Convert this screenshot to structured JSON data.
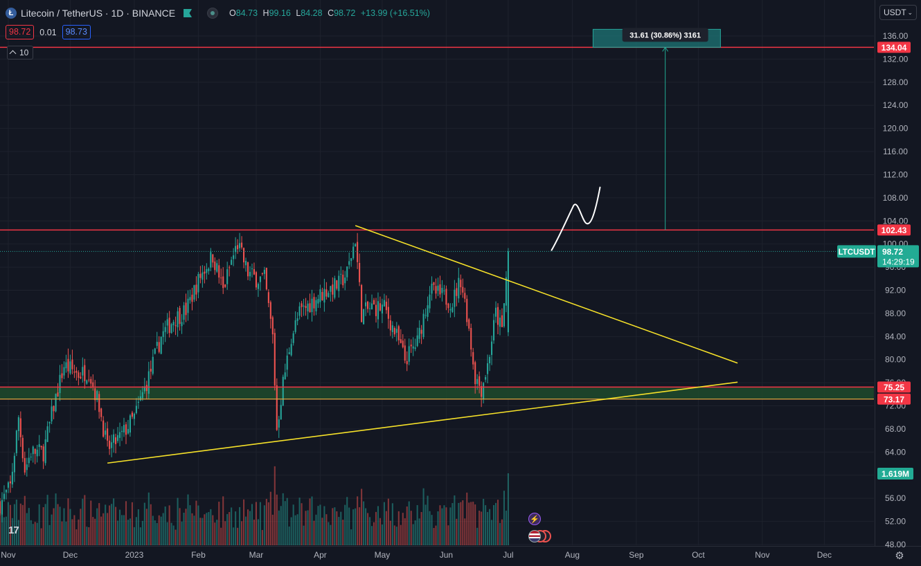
{
  "header": {
    "symbol_title": "Litecoin / TetherUS · 1D · BINANCE",
    "ohlc": {
      "o_label": "O",
      "o": "84.73",
      "h_label": "H",
      "h": "99.16",
      "l_label": "L",
      "l": "84.28",
      "c_label": "C",
      "c": "98.72",
      "change": "+13.99 (+16.51%)"
    },
    "sell_price": "98.72",
    "spread": "0.01",
    "buy_price": "98.73",
    "indicator_value": "10"
  },
  "currency_selector": "USDT",
  "colors": {
    "background": "#131722",
    "up": "#26a69a",
    "down": "#ef5350",
    "level_line": "#f23645",
    "trendline": "#f7e229",
    "grid": "#1e222d",
    "zone": "#1f4a2c",
    "projection": "#22ab94"
  },
  "price_axis": {
    "ticks": [
      "136.00",
      "132.00",
      "128.00",
      "124.00",
      "120.00",
      "116.00",
      "112.00",
      "108.00",
      "104.00",
      "100.00",
      "96.00",
      "92.00",
      "88.00",
      "84.00",
      "80.00",
      "76.00",
      "72.00",
      "68.00",
      "64.00",
      "60.00",
      "56.00",
      "52.00",
      "48.00"
    ]
  },
  "time_axis": {
    "ticks": [
      "Nov",
      "Dec",
      "2023",
      "Feb",
      "Mar",
      "Apr",
      "May",
      "Jun",
      "Jul",
      "Aug",
      "Sep",
      "Oct",
      "Nov",
      "Dec"
    ]
  },
  "level_labels": [
    {
      "text": "134.04",
      "value": 134.04
    },
    {
      "text": "102.43",
      "value": 102.43
    },
    {
      "text": "75.25",
      "value": 75.25
    },
    {
      "text": "73.17",
      "value": 73.17
    }
  ],
  "current_price": {
    "symbol": "LTCUSDT",
    "price": "98.72",
    "countdown": "14:29:19",
    "value": 98.72
  },
  "volume_label": "1.619M",
  "projection_label": "31.61 (30.86%) 3161",
  "chart_data": {
    "type": "candlestick",
    "title": "Litecoin / TetherUS · 1D · BINANCE",
    "ylim": [
      48,
      138
    ],
    "x_range": [
      "2022-10-28",
      "2023-12-25"
    ],
    "support_zone": [
      73.17,
      75.25
    ],
    "resistance": 102.43,
    "target": 134.04,
    "descending_trendline": [
      {
        "date": "2023-04-18",
        "price": 103.2
      },
      {
        "date": "2023-10-20",
        "price": 79.4
      }
    ],
    "ascending_trendline": [
      {
        "date": "2022-12-19",
        "price": 62.1
      },
      {
        "date": "2023-10-20",
        "price": 76.1
      }
    ],
    "projection_arrow": {
      "date": "2023-09-15",
      "from": 102.43,
      "to": 134.04
    },
    "close_path": [
      {
        "date": "2022-10-28",
        "price": 55.0
      },
      {
        "date": "2022-11-02",
        "price": 58.0
      },
      {
        "date": "2022-11-06",
        "price": 70.0
      },
      {
        "date": "2022-11-09",
        "price": 61.0
      },
      {
        "date": "2022-11-12",
        "price": 64.0
      },
      {
        "date": "2022-11-18",
        "price": 64.0
      },
      {
        "date": "2022-11-23",
        "price": 72.0
      },
      {
        "date": "2022-11-28",
        "price": 79.0
      },
      {
        "date": "2022-12-05",
        "price": 77.5
      },
      {
        "date": "2022-12-10",
        "price": 78.0
      },
      {
        "date": "2022-12-15",
        "price": 72.0
      },
      {
        "date": "2022-12-19",
        "price": 64.5
      },
      {
        "date": "2022-12-25",
        "price": 66.5
      },
      {
        "date": "2023-01-01",
        "price": 70.0
      },
      {
        "date": "2023-01-08",
        "price": 77.0
      },
      {
        "date": "2023-01-14",
        "price": 84.0
      },
      {
        "date": "2023-01-20",
        "price": 87.0
      },
      {
        "date": "2023-01-26",
        "price": 88.5
      },
      {
        "date": "2023-02-02",
        "price": 94.5
      },
      {
        "date": "2023-02-08",
        "price": 98.0
      },
      {
        "date": "2023-02-13",
        "price": 92.0
      },
      {
        "date": "2023-02-17",
        "price": 97.0
      },
      {
        "date": "2023-02-20",
        "price": 100.0
      },
      {
        "date": "2023-02-25",
        "price": 95.0
      },
      {
        "date": "2023-03-01",
        "price": 94.0
      },
      {
        "date": "2023-03-05",
        "price": 94.0
      },
      {
        "date": "2023-03-09",
        "price": 84.0
      },
      {
        "date": "2023-03-11",
        "price": 68.0
      },
      {
        "date": "2023-03-14",
        "price": 76.0
      },
      {
        "date": "2023-03-18",
        "price": 84.0
      },
      {
        "date": "2023-03-22",
        "price": 88.0
      },
      {
        "date": "2023-03-28",
        "price": 90.0
      },
      {
        "date": "2023-04-04",
        "price": 92.0
      },
      {
        "date": "2023-04-10",
        "price": 93.0
      },
      {
        "date": "2023-04-14",
        "price": 95.0
      },
      {
        "date": "2023-04-18",
        "price": 101.0
      },
      {
        "date": "2023-04-21",
        "price": 88.0
      },
      {
        "date": "2023-04-26",
        "price": 89.0
      },
      {
        "date": "2023-05-02",
        "price": 89.0
      },
      {
        "date": "2023-05-08",
        "price": 84.0
      },
      {
        "date": "2023-05-12",
        "price": 80.0
      },
      {
        "date": "2023-05-18",
        "price": 83.0
      },
      {
        "date": "2023-05-24",
        "price": 92.0
      },
      {
        "date": "2023-05-30",
        "price": 91.0
      },
      {
        "date": "2023-06-04",
        "price": 90.0
      },
      {
        "date": "2023-06-08",
        "price": 94.0
      },
      {
        "date": "2023-06-11",
        "price": 88.0
      },
      {
        "date": "2023-06-15",
        "price": 77.0
      },
      {
        "date": "2023-06-18",
        "price": 75.0
      },
      {
        "date": "2023-06-21",
        "price": 79.0
      },
      {
        "date": "2023-06-25",
        "price": 88.0
      },
      {
        "date": "2023-06-28",
        "price": 85.0
      },
      {
        "date": "2023-07-01",
        "price": 98.72
      }
    ]
  }
}
